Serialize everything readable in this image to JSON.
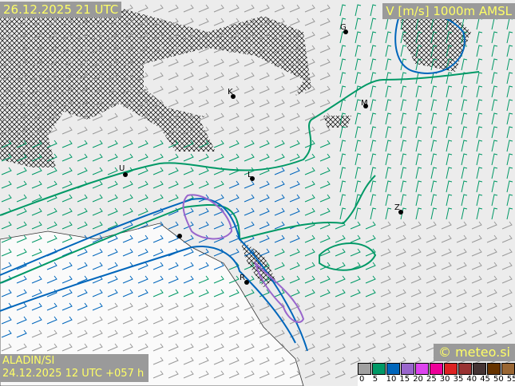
{
  "header": {
    "valid_time": "26.12.2025 21 UTC",
    "field": "V [m/s] 1000m AMSL"
  },
  "footer": {
    "model": "ALADIN/SI",
    "run": "24.12.2025 12 UTC +057 h",
    "copyright": "© meteo.si"
  },
  "legend": {
    "ticks": [
      "0",
      "5",
      "10",
      "15",
      "20",
      "25",
      "30",
      "35",
      "40",
      "45",
      "50",
      "55"
    ],
    "colors": [
      "#a0a0a0",
      "#009966",
      "#0066bb",
      "#9966cc",
      "#dd44ee",
      "#ee0099",
      "#dd2222",
      "#993333",
      "#443333",
      "#663300",
      "#996633",
      "#bb9966"
    ]
  },
  "cities": [
    "G",
    "K",
    "M",
    "U",
    "L",
    "Z",
    "R"
  ],
  "colors": {
    "background": "#ececec",
    "sea": "#ffffff",
    "label_bg": "#9a9a9a",
    "label_text": "#ffff66"
  }
}
